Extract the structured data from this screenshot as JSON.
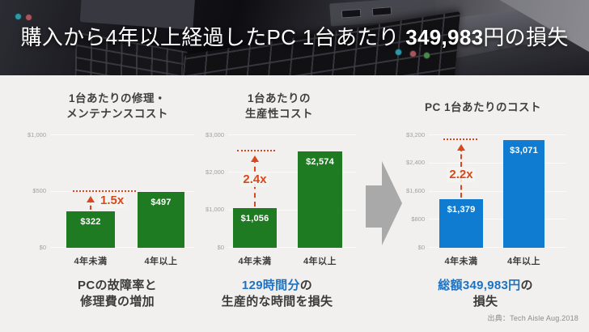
{
  "header": {
    "title_prefix": "購入から4年以上経過したPC 1台あたり ",
    "title_number": "349,983",
    "title_suffix": "円の損失"
  },
  "source": "出典：Tech Aisle Aug.2018",
  "colors": {
    "green_bar": "#1e7b22",
    "blue_bar": "#0f7cd1",
    "annotation_red": "#d8481f",
    "caption_blue": "#1f72c2",
    "arrow_gray": "#a9a9a9",
    "background": "#f1f0ee"
  },
  "chart_data": [
    {
      "type": "bar",
      "title": "1台あたりの修理・メンテナンスコスト",
      "title_lines": [
        "1台あたりの修理・",
        "メンテナンスコスト"
      ],
      "categories": [
        "4年未満",
        "4年以上"
      ],
      "values": [
        322,
        497
      ],
      "value_labels": [
        "$322",
        "$497"
      ],
      "multiplier": "1.5x",
      "bar_color": "#1e7b22",
      "ylim": [
        0,
        1000
      ],
      "yticks": [
        0,
        500,
        1000
      ],
      "ytick_labels": [
        "$0",
        "$500",
        "$1,000"
      ],
      "grid": true,
      "legend": false
    },
    {
      "type": "bar",
      "title": "1台あたりの生産性コスト",
      "title_lines": [
        "1台あたりの",
        "生産性コスト"
      ],
      "categories": [
        "4年未満",
        "4年以上"
      ],
      "values": [
        1056,
        2574
      ],
      "value_labels": [
        "$1,056",
        "$2,574"
      ],
      "multiplier": "2.4x",
      "bar_color": "#1e7b22",
      "ylim": [
        0,
        3000
      ],
      "yticks": [
        0,
        1000,
        2000,
        3000
      ],
      "ytick_labels": [
        "$0",
        "$1,000",
        "$2,000",
        "$3,000"
      ],
      "grid": true,
      "legend": false
    },
    {
      "type": "bar",
      "title": "PC 1台あたりのコスト",
      "title_lines": [
        "PC 1台あたりのコスト"
      ],
      "categories": [
        "4年未満",
        "4年以上"
      ],
      "values": [
        1379,
        3071
      ],
      "value_labels": [
        "$1,379",
        "$3,071"
      ],
      "multiplier": "2.2x",
      "bar_color": "#0f7cd1",
      "ylim": [
        0,
        3200
      ],
      "yticks": [
        0,
        800,
        1600,
        2400,
        3200
      ],
      "ytick_labels": [
        "$0",
        "$800",
        "$1,600",
        "$2,400",
        "$3,200"
      ],
      "grid": true,
      "legend": false
    }
  ],
  "captions": [
    {
      "line1_highlight": "",
      "line1_rest": "PCの故障率と",
      "line2": "修理費の増加"
    },
    {
      "line1_highlight": "129時間分",
      "line1_rest": "の",
      "line2": "生産的な時間を損失"
    },
    {
      "line1_highlight": "総額349,983円",
      "line1_rest": "の",
      "line2": "損失"
    }
  ]
}
